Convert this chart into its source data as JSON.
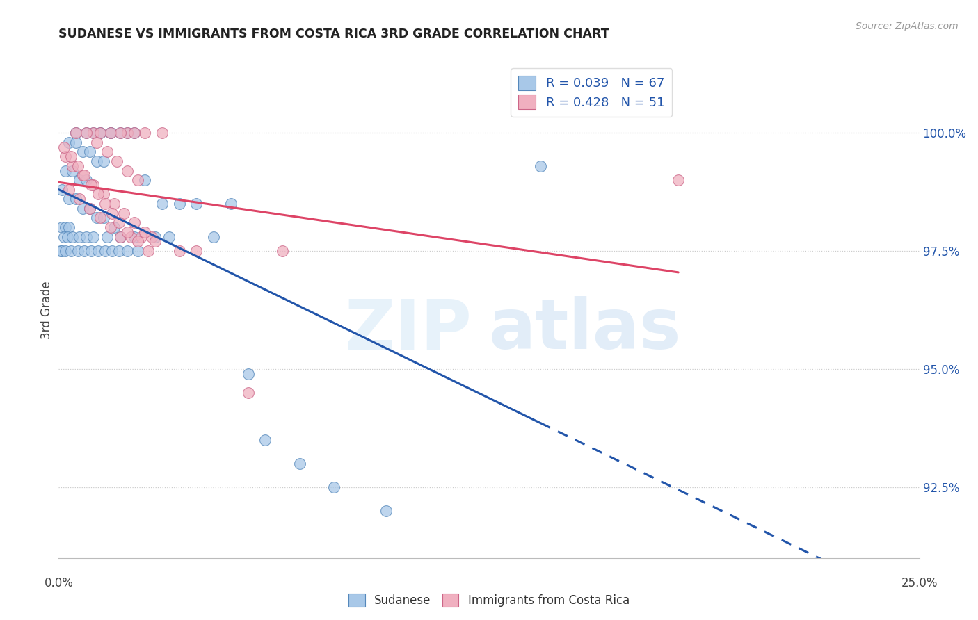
{
  "title": "SUDANESE VS IMMIGRANTS FROM COSTA RICA 3RD GRADE CORRELATION CHART",
  "source": "Source: ZipAtlas.com",
  "ylabel": "3rd Grade",
  "xlim": [
    0.0,
    25.0
  ],
  "ylim": [
    91.0,
    101.5
  ],
  "r_blue": 0.039,
  "n_blue": 67,
  "r_pink": 0.428,
  "n_pink": 51,
  "blue_color": "#a8c8e8",
  "pink_color": "#f0b0c0",
  "blue_edge_color": "#5588bb",
  "pink_edge_color": "#cc6688",
  "blue_line_color": "#2255aa",
  "pink_line_color": "#dd4466",
  "ytick_vals": [
    92.5,
    95.0,
    97.5,
    100.0
  ],
  "blue_scatter_x": [
    1.2,
    1.5,
    1.8,
    2.0,
    2.2,
    0.5,
    0.8,
    1.0,
    1.2,
    1.5,
    0.3,
    0.5,
    0.7,
    0.9,
    1.1,
    1.3,
    0.2,
    0.4,
    0.6,
    0.8,
    0.1,
    0.3,
    0.5,
    0.7,
    0.9,
    1.1,
    1.3,
    1.6,
    2.5,
    3.0,
    3.5,
    4.0,
    5.0,
    0.1,
    0.2,
    0.3,
    0.15,
    0.25,
    0.4,
    0.6,
    0.8,
    1.0,
    1.4,
    1.8,
    2.2,
    2.8,
    3.2,
    4.5,
    14.0,
    0.05,
    0.1,
    0.2,
    0.35,
    0.55,
    0.75,
    0.95,
    1.15,
    1.35,
    1.55,
    1.75,
    2.0,
    2.3,
    5.5,
    6.0,
    7.0,
    8.0,
    9.5
  ],
  "blue_scatter_y": [
    100.0,
    100.0,
    100.0,
    100.0,
    100.0,
    100.0,
    100.0,
    100.0,
    100.0,
    100.0,
    99.8,
    99.8,
    99.6,
    99.6,
    99.4,
    99.4,
    99.2,
    99.2,
    99.0,
    99.0,
    98.8,
    98.6,
    98.6,
    98.4,
    98.4,
    98.2,
    98.2,
    98.0,
    99.0,
    98.5,
    98.5,
    98.5,
    98.5,
    98.0,
    98.0,
    98.0,
    97.8,
    97.8,
    97.8,
    97.8,
    97.8,
    97.8,
    97.8,
    97.8,
    97.8,
    97.8,
    97.8,
    97.8,
    99.3,
    97.5,
    97.5,
    97.5,
    97.5,
    97.5,
    97.5,
    97.5,
    97.5,
    97.5,
    97.5,
    97.5,
    97.5,
    97.5,
    94.9,
    93.5,
    93.0,
    92.5,
    92.0
  ],
  "pink_scatter_x": [
    1.0,
    1.5,
    2.0,
    2.5,
    3.0,
    1.2,
    1.8,
    2.2,
    0.5,
    0.8,
    1.1,
    1.4,
    1.7,
    2.0,
    2.3,
    0.3,
    0.6,
    0.9,
    1.2,
    1.5,
    1.8,
    2.1,
    2.4,
    2.7,
    0.2,
    0.4,
    0.7,
    1.0,
    1.3,
    1.6,
    1.9,
    2.2,
    2.5,
    2.8,
    0.15,
    0.35,
    0.55,
    0.75,
    0.95,
    1.15,
    1.35,
    1.55,
    1.75,
    2.0,
    2.3,
    2.6,
    3.5,
    4.0,
    5.5,
    18.0,
    6.5
  ],
  "pink_scatter_y": [
    100.0,
    100.0,
    100.0,
    100.0,
    100.0,
    100.0,
    100.0,
    100.0,
    100.0,
    100.0,
    99.8,
    99.6,
    99.4,
    99.2,
    99.0,
    98.8,
    98.6,
    98.4,
    98.2,
    98.0,
    97.8,
    97.8,
    97.8,
    97.8,
    99.5,
    99.3,
    99.1,
    98.9,
    98.7,
    98.5,
    98.3,
    98.1,
    97.9,
    97.7,
    99.7,
    99.5,
    99.3,
    99.1,
    98.9,
    98.7,
    98.5,
    98.3,
    98.1,
    97.9,
    97.7,
    97.5,
    97.5,
    97.5,
    94.5,
    99.0,
    97.5
  ]
}
